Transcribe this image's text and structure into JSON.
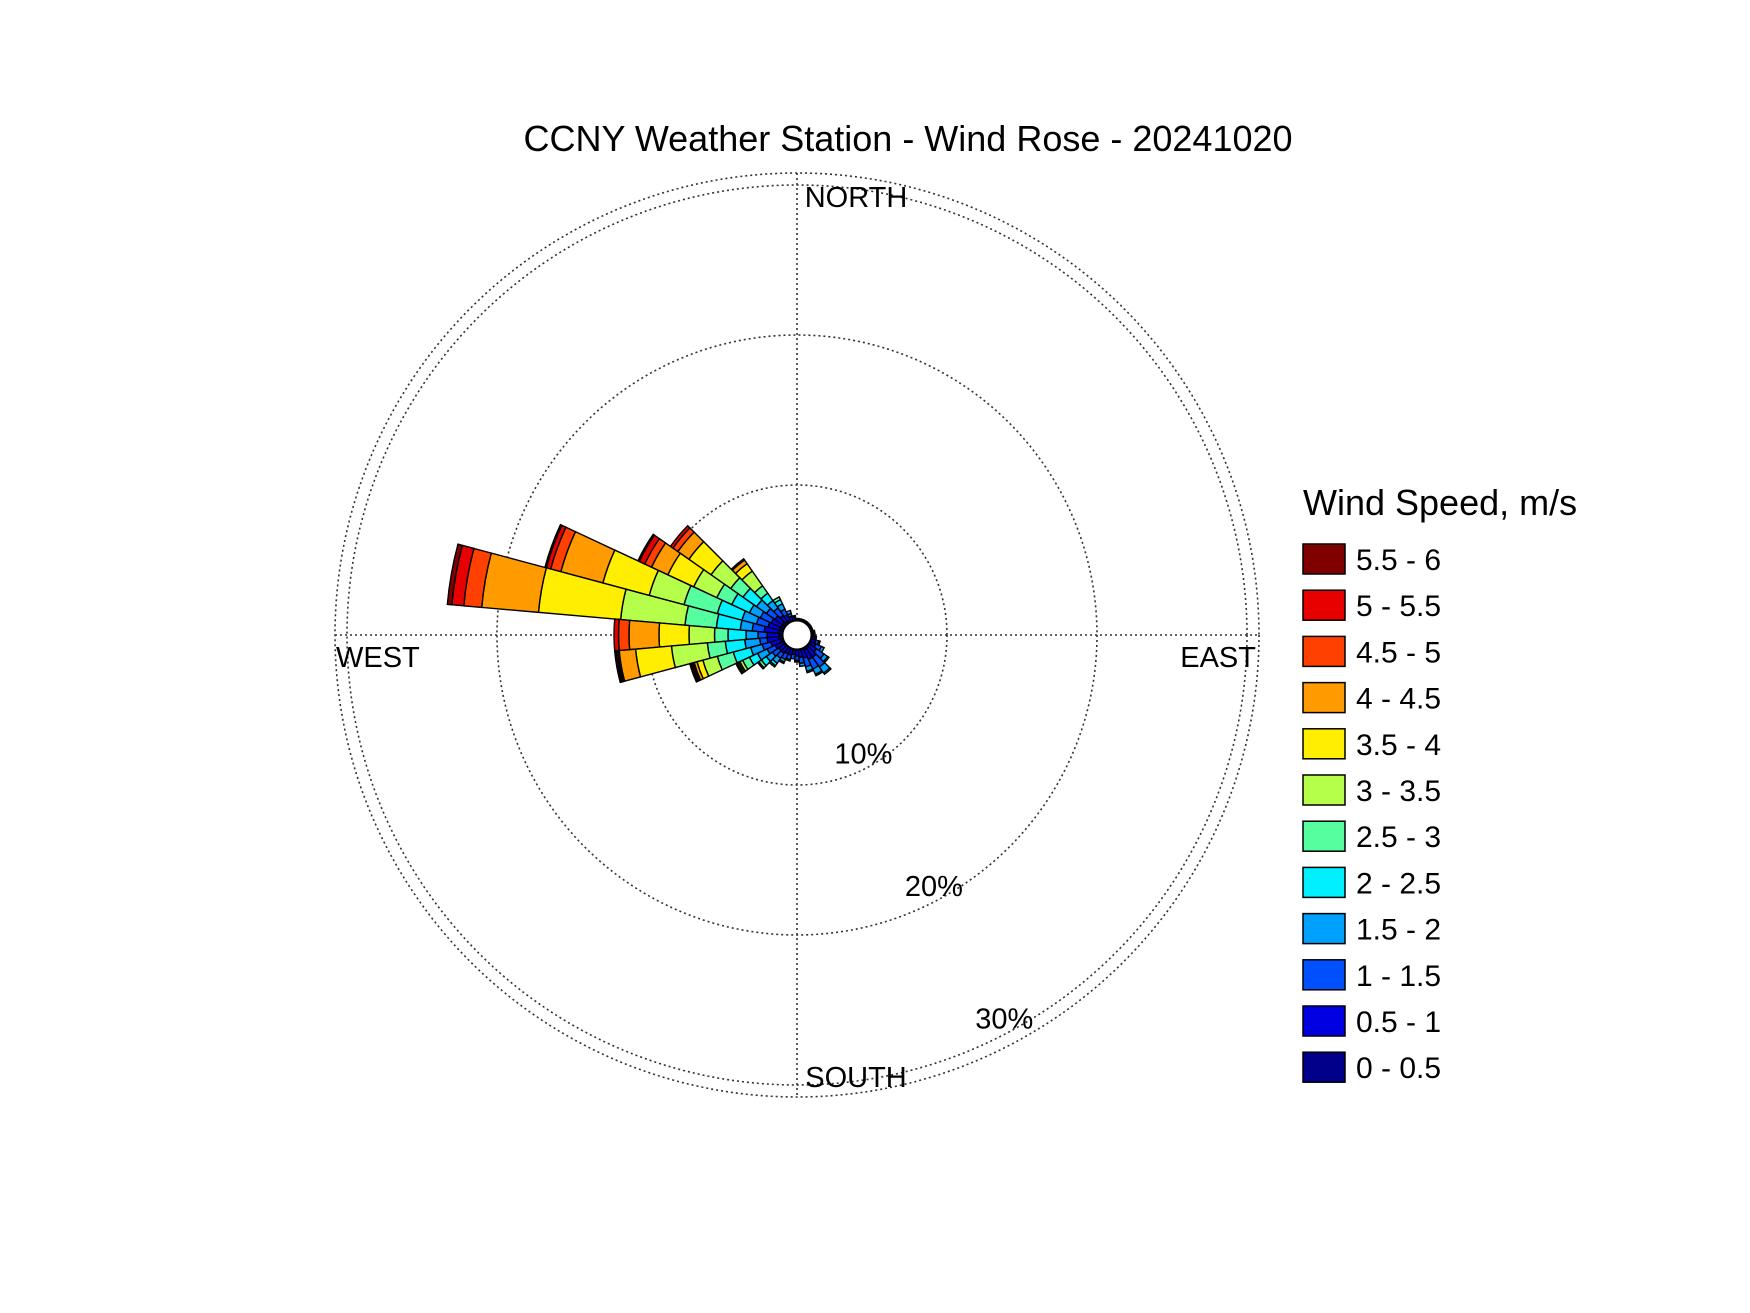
{
  "chart_data": {
    "type": "wind-rose",
    "title": "CCNY Weather Station - Wind Rose - 20241020",
    "directions": {
      "north": "NORTH",
      "east": "EAST",
      "south": "SOUTH",
      "west": "WEST"
    },
    "radial_axis": {
      "unit": "%",
      "rings": [
        10,
        20,
        30
      ],
      "ring_labels": [
        "10%",
        "20%",
        "30%"
      ],
      "max": 30.8,
      "hollow_center_pct": 0.9
    },
    "legend": {
      "title": "Wind Speed, m/s",
      "bins": [
        {
          "label": "5.5 - 6",
          "color": "#800000"
        },
        {
          "label": "5 - 5.5",
          "color": "#e60000"
        },
        {
          "label": "4.5 - 5",
          "color": "#ff4000"
        },
        {
          "label": "4 - 4.5",
          "color": "#ff9a00"
        },
        {
          "label": "3.5 - 4",
          "color": "#ffee00"
        },
        {
          "label": "3 - 3.5",
          "color": "#b5ff4a"
        },
        {
          "label": "2.5 - 3",
          "color": "#55ff9f"
        },
        {
          "label": "2 - 2.5",
          "color": "#00f0ff"
        },
        {
          "label": "1.5 - 2",
          "color": "#00a0ff"
        },
        {
          "label": "1 - 1.5",
          "color": "#0050ff"
        },
        {
          "label": "0.5 - 1",
          "color": "#0000e0"
        },
        {
          "label": "0 - 0.5",
          "color": "#00008a"
        }
      ]
    },
    "sector_width_deg": 10,
    "sectors_note": "cumulative frequency (%) at the outer edge of each speed bin, bins ordered 0-0.5 upward",
    "sectors": [
      {
        "direction": 290,
        "cumulative_pct": [
          1.2,
          2.0,
          2.8,
          3.8,
          5.5,
          7.8,
          10.2,
          13.4,
          16.3,
          17.0,
          17.3,
          17.4
        ]
      },
      {
        "direction": 280,
        "cumulative_pct": [
          1.2,
          2.2,
          3.0,
          3.8,
          5.4,
          7.5,
          11.8,
          17.3,
          21.1,
          22.3,
          23.1,
          23.4
        ]
      },
      {
        "direction": 270,
        "cumulative_pct": [
          1.2,
          2.0,
          2.6,
          3.4,
          4.6,
          5.5,
          7.2,
          9.2,
          11.2,
          11.9,
          12.2,
          12.2
        ]
      },
      {
        "direction": 260,
        "cumulative_pct": [
          1.2,
          2.0,
          2.5,
          3.5,
          4.8,
          6.0,
          8.4,
          10.8,
          11.9,
          12.0,
          12.1,
          12.2
        ]
      },
      {
        "direction": 250,
        "cumulative_pct": [
          1.1,
          1.8,
          2.4,
          3.2,
          4.4,
          5.5,
          6.5,
          6.9,
          7.1,
          7.2,
          7.3,
          7.4
        ]
      },
      {
        "direction": 240,
        "cumulative_pct": [
          1.0,
          1.6,
          2.2,
          2.9,
          3.5,
          4.0,
          4.2,
          4.3,
          4.4,
          4.4,
          4.4,
          4.5
        ]
      },
      {
        "direction": 230,
        "cumulative_pct": [
          1.0,
          1.5,
          2.0,
          2.5,
          2.9,
          3.1,
          3.2,
          3.2,
          3.2,
          3.2,
          3.2,
          3.2
        ]
      },
      {
        "direction": 220,
        "cumulative_pct": [
          1.0,
          1.5,
          1.9,
          2.3,
          2.5,
          2.6,
          2.6,
          2.6,
          2.6,
          2.6,
          2.6,
          2.6
        ]
      },
      {
        "direction": 210,
        "cumulative_pct": [
          1.0,
          1.4,
          1.8,
          2.0,
          2.1,
          2.1,
          2.1,
          2.1,
          2.1,
          2.1,
          2.1,
          2.1
        ]
      },
      {
        "direction": 200,
        "cumulative_pct": [
          1.0,
          1.4,
          1.7,
          1.8,
          1.8,
          1.8,
          1.8,
          1.8,
          1.8,
          1.8,
          1.8,
          1.8
        ]
      },
      {
        "direction": 190,
        "cumulative_pct": [
          1.0,
          1.3,
          1.6,
          1.6,
          1.6,
          1.6,
          1.6,
          1.6,
          1.6,
          1.6,
          1.6,
          1.6
        ]
      },
      {
        "direction": 180,
        "cumulative_pct": [
          1.0,
          1.4,
          1.7,
          1.8,
          1.8,
          1.8,
          1.8,
          1.8,
          1.8,
          1.8,
          1.8,
          1.8
        ]
      },
      {
        "direction": 170,
        "cumulative_pct": [
          1.0,
          1.5,
          1.9,
          2.1,
          2.1,
          2.1,
          2.1,
          2.1,
          2.1,
          2.1,
          2.1,
          2.1
        ]
      },
      {
        "direction": 160,
        "cumulative_pct": [
          1.0,
          1.6,
          2.2,
          2.5,
          2.6,
          2.6,
          2.6,
          2.6,
          2.6,
          2.6,
          2.6,
          2.6
        ]
      },
      {
        "direction": 150,
        "cumulative_pct": [
          1.1,
          1.8,
          2.5,
          2.9,
          3.0,
          3.0,
          3.0,
          3.0,
          3.0,
          3.0,
          3.0,
          3.0
        ]
      },
      {
        "direction": 140,
        "cumulative_pct": [
          1.1,
          1.8,
          2.6,
          3.1,
          3.2,
          3.2,
          3.2,
          3.2,
          3.2,
          3.2,
          3.2,
          3.2
        ]
      },
      {
        "direction": 130,
        "cumulative_pct": [
          1.0,
          1.6,
          2.2,
          2.5,
          2.6,
          2.6,
          2.6,
          2.6,
          2.6,
          2.6,
          2.6,
          2.6
        ]
      },
      {
        "direction": 120,
        "cumulative_pct": [
          1.0,
          1.4,
          1.8,
          2.0,
          2.0,
          2.0,
          2.0,
          2.0,
          2.0,
          2.0,
          2.0,
          2.0
        ]
      },
      {
        "direction": 110,
        "cumulative_pct": [
          1.0,
          1.3,
          1.5,
          1.6,
          1.6,
          1.6,
          1.6,
          1.6,
          1.6,
          1.6,
          1.6,
          1.6
        ]
      },
      {
        "direction": 100,
        "cumulative_pct": [
          1.0,
          1.2,
          1.3,
          1.3,
          1.3,
          1.3,
          1.3,
          1.3,
          1.3,
          1.3,
          1.3,
          1.3
        ]
      },
      {
        "direction": 90,
        "cumulative_pct": [
          1.0,
          1.1,
          1.2,
          1.2,
          1.2,
          1.2,
          1.2,
          1.2,
          1.2,
          1.2,
          1.2,
          1.2
        ]
      },
      {
        "direction": 80,
        "cumulative_pct": [
          1.0,
          1.1,
          1.2,
          1.2,
          1.2,
          1.2,
          1.2,
          1.2,
          1.2,
          1.2,
          1.2,
          1.2
        ]
      },
      {
        "direction": 70,
        "cumulative_pct": [
          1.0,
          1.1,
          1.1,
          1.1,
          1.1,
          1.1,
          1.1,
          1.1,
          1.1,
          1.1,
          1.1,
          1.1
        ]
      },
      {
        "direction": 60,
        "cumulative_pct": [
          1.0,
          1.1,
          1.1,
          1.1,
          1.1,
          1.1,
          1.1,
          1.1,
          1.1,
          1.1,
          1.1,
          1.1
        ]
      },
      {
        "direction": 50,
        "cumulative_pct": [
          1.0,
          1.1,
          1.1,
          1.1,
          1.1,
          1.1,
          1.1,
          1.1,
          1.1,
          1.1,
          1.1,
          1.1
        ]
      },
      {
        "direction": 40,
        "cumulative_pct": [
          1.0,
          1.1,
          1.1,
          1.1,
          1.1,
          1.1,
          1.1,
          1.1,
          1.1,
          1.1,
          1.1,
          1.1
        ]
      },
      {
        "direction": 30,
        "cumulative_pct": [
          1.0,
          1.1,
          1.1,
          1.1,
          1.1,
          1.1,
          1.1,
          1.1,
          1.1,
          1.1,
          1.1,
          1.1
        ]
      },
      {
        "direction": 20,
        "cumulative_pct": [
          1.0,
          1.1,
          1.1,
          1.1,
          1.1,
          1.1,
          1.1,
          1.1,
          1.1,
          1.1,
          1.1,
          1.1
        ]
      },
      {
        "direction": 10,
        "cumulative_pct": [
          1.0,
          1.1,
          1.1,
          1.1,
          1.1,
          1.1,
          1.1,
          1.1,
          1.1,
          1.1,
          1.1,
          1.1
        ]
      },
      {
        "direction": 0,
        "cumulative_pct": [
          1.0,
          1.1,
          1.1,
          1.1,
          1.1,
          1.1,
          1.1,
          1.1,
          1.1,
          1.1,
          1.1,
          1.1
        ]
      },
      {
        "direction": 350,
        "cumulative_pct": [
          1.0,
          1.2,
          1.3,
          1.3,
          1.3,
          1.3,
          1.3,
          1.3,
          1.3,
          1.3,
          1.3,
          1.3
        ]
      },
      {
        "direction": 340,
        "cumulative_pct": [
          1.0,
          1.3,
          1.5,
          1.7,
          1.7,
          1.7,
          1.7,
          1.7,
          1.7,
          1.7,
          1.7,
          1.7
        ]
      },
      {
        "direction": 330,
        "cumulative_pct": [
          1.1,
          1.5,
          1.9,
          2.3,
          2.6,
          2.8,
          2.8,
          2.8,
          2.8,
          2.8,
          2.8,
          2.8
        ]
      },
      {
        "direction": 320,
        "cumulative_pct": [
          1.1,
          1.6,
          2.2,
          2.8,
          3.4,
          4.0,
          5.2,
          5.8,
          6.1,
          6.2,
          6.2,
          6.2
        ]
      },
      {
        "direction": 310,
        "cumulative_pct": [
          1.2,
          1.8,
          2.5,
          3.3,
          4.4,
          5.4,
          7.0,
          8.8,
          9.7,
          10.1,
          10.3,
          10.3
        ]
      },
      {
        "direction": 300,
        "cumulative_pct": [
          1.2,
          1.9,
          2.7,
          3.5,
          4.8,
          5.9,
          7.6,
          9.5,
          10.7,
          11.2,
          11.6,
          11.7
        ]
      }
    ],
    "grid": "dotted"
  }
}
